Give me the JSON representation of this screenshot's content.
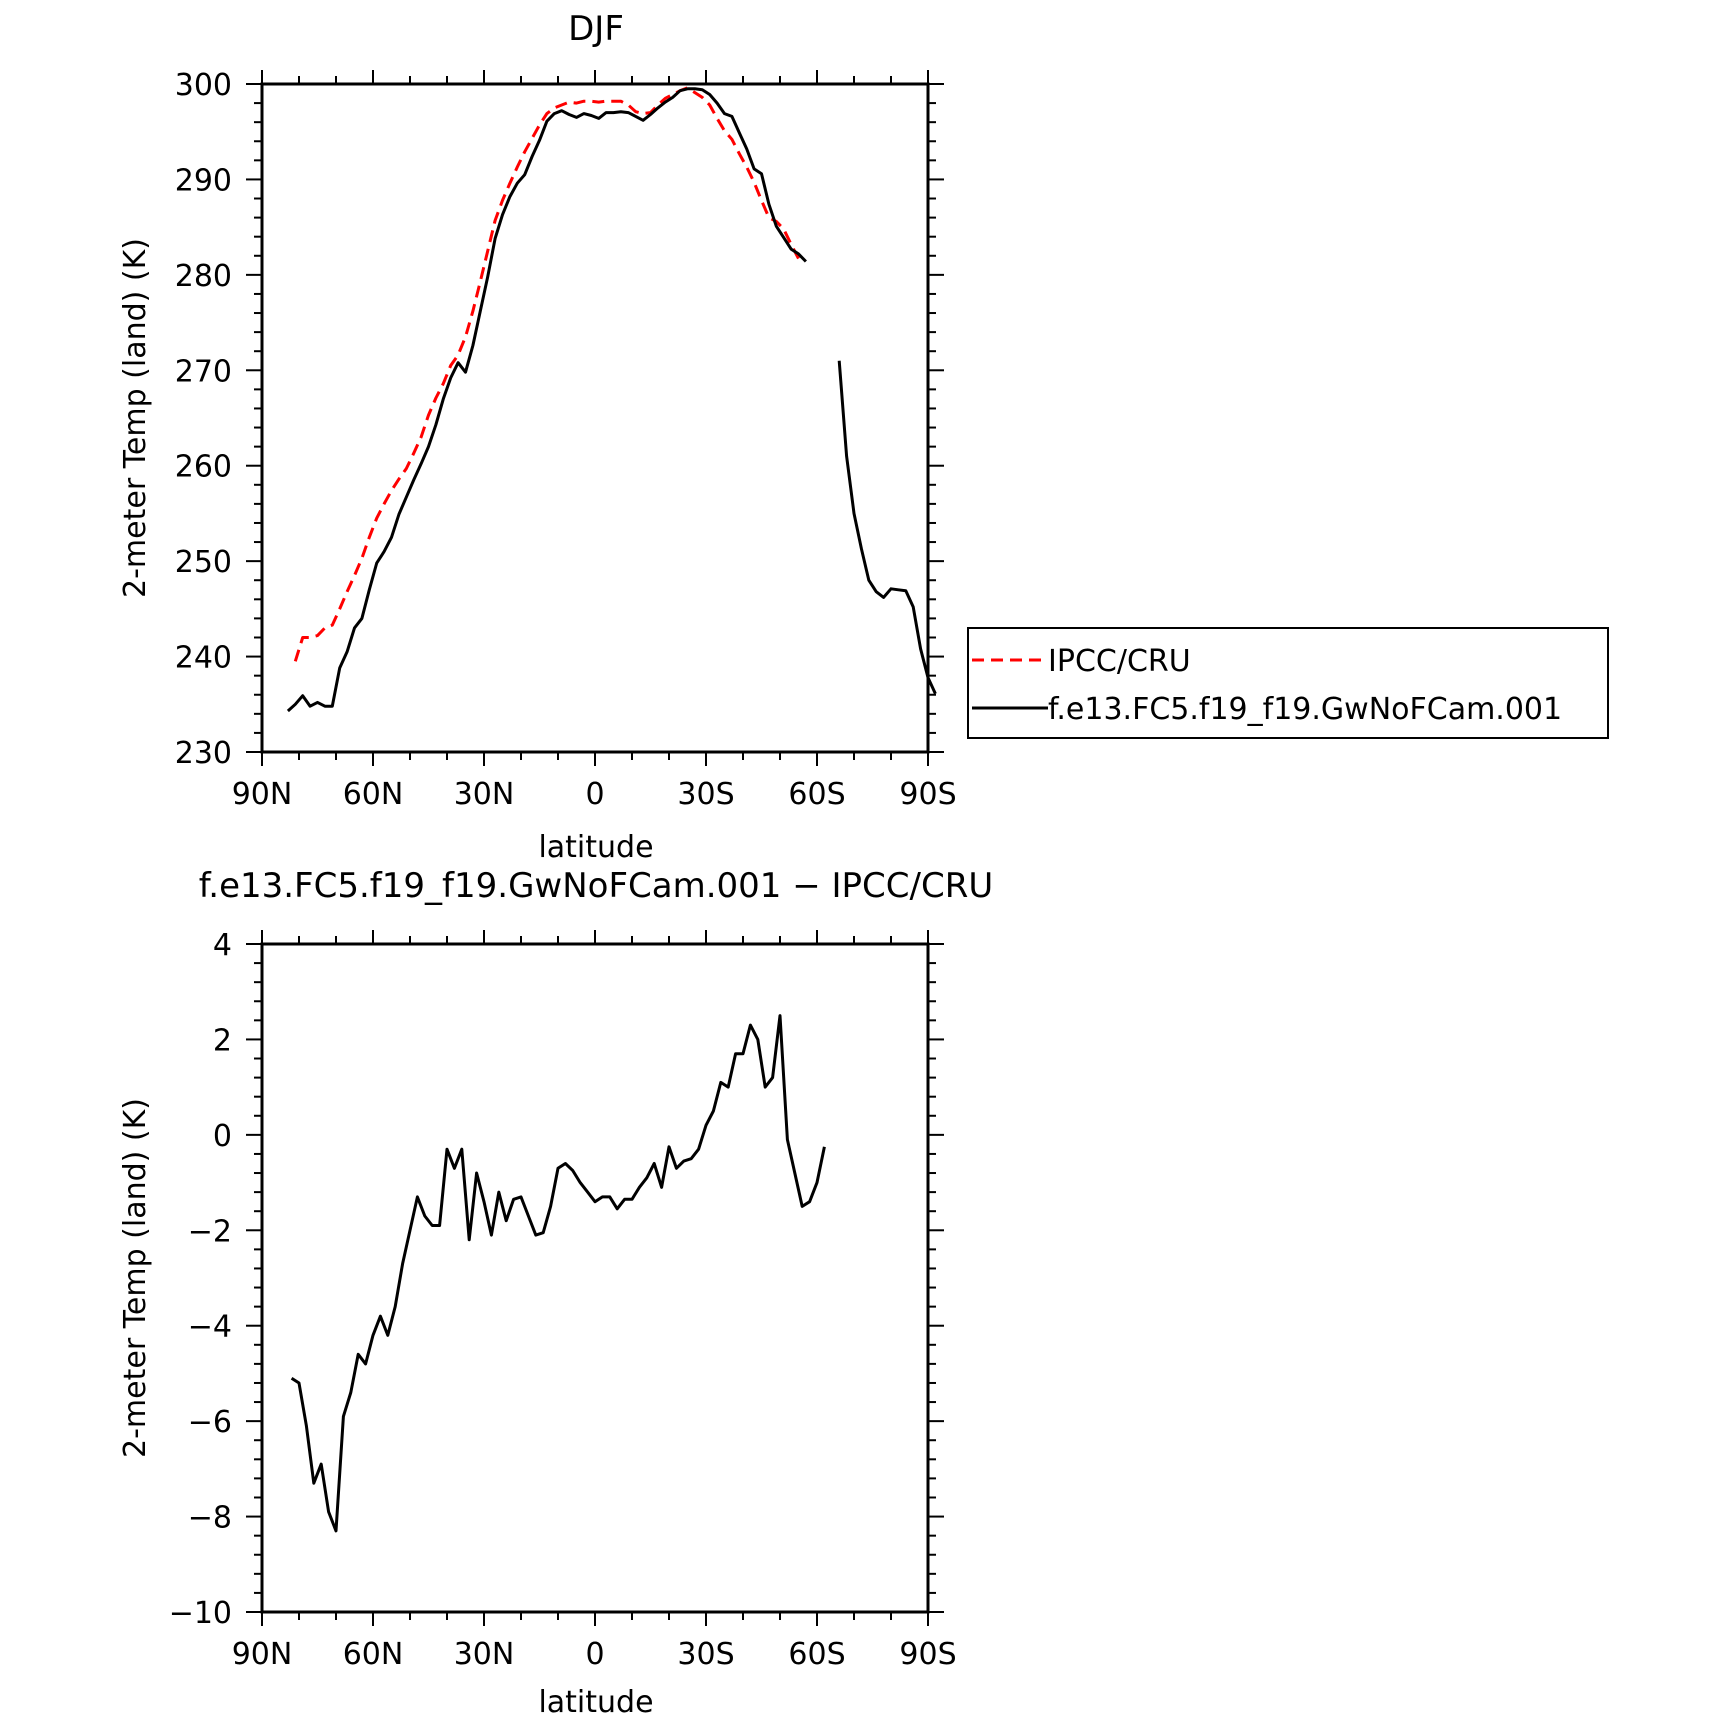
{
  "chart_data": [
    {
      "type": "line",
      "title": "DJF",
      "xlabel": "latitude",
      "ylabel": "2-meter Temp (land) (K)",
      "xlim": [
        90,
        -90
      ],
      "ylim": [
        230,
        300
      ],
      "xtick_labels": [
        "90N",
        "60N",
        "30N",
        "0",
        "30S",
        "60S",
        "90S"
      ],
      "ytick_labels": [
        "300",
        "290",
        "280",
        "270",
        "260",
        "250",
        "240",
        "230"
      ],
      "legend": {
        "placement": "right"
      },
      "series": [
        {
          "name": "IPCC/CRU",
          "color": "#ff0000",
          "style": "dashed",
          "points": [
            [
              81,
              239.5
            ],
            [
              79,
              242.0
            ],
            [
              77,
              242.0
            ],
            [
              75,
              242.2
            ],
            [
              73,
              243.0
            ],
            [
              71,
              243.3
            ],
            [
              69,
              245.0
            ],
            [
              67,
              246.8
            ],
            [
              65,
              248.5
            ],
            [
              63,
              250.3
            ],
            [
              61,
              252.5
            ],
            [
              59,
              254.5
            ],
            [
              57,
              256.0
            ],
            [
              55,
              257.4
            ],
            [
              53,
              258.6
            ],
            [
              51,
              259.7
            ],
            [
              49,
              261.3
            ],
            [
              47,
              263.0
            ],
            [
              45,
              265.3
            ],
            [
              43,
              267.1
            ],
            [
              41,
              268.6
            ],
            [
              39,
              270.5
            ],
            [
              37,
              271.6
            ],
            [
              35,
              273.5
            ],
            [
              33,
              276.2
            ],
            [
              31,
              279.3
            ],
            [
              29,
              282.5
            ],
            [
              27,
              285.7
            ],
            [
              25,
              287.8
            ],
            [
              23,
              289.6
            ],
            [
              21,
              291.3
            ],
            [
              19,
              292.9
            ],
            [
              17,
              294.3
            ],
            [
              15,
              295.7
            ],
            [
              13,
              296.9
            ],
            [
              11,
              297.5
            ],
            [
              9,
              297.8
            ],
            [
              7,
              298.1
            ],
            [
              5,
              298.0
            ],
            [
              3,
              298.2
            ],
            [
              1,
              298.2
            ],
            [
              -1,
              298.1
            ],
            [
              -3,
              298.2
            ],
            [
              -5,
              298.2
            ],
            [
              -7,
              298.2
            ],
            [
              -9,
              297.8
            ],
            [
              -11,
              297.1
            ],
            [
              -13,
              296.9
            ],
            [
              -15,
              297.0
            ],
            [
              -17,
              297.8
            ],
            [
              -19,
              298.5
            ],
            [
              -21,
              298.9
            ],
            [
              -23,
              299.3
            ],
            [
              -25,
              299.6
            ],
            [
              -27,
              299.1
            ],
            [
              -29,
              298.6
            ],
            [
              -31,
              297.8
            ],
            [
              -33,
              296.4
            ],
            [
              -35,
              295.1
            ],
            [
              -37,
              294.2
            ],
            [
              -39,
              292.7
            ],
            [
              -41,
              291.3
            ],
            [
              -43,
              289.7
            ],
            [
              -45,
              287.8
            ],
            [
              -47,
              286.0
            ],
            [
              -49,
              285.6
            ],
            [
              -51,
              284.8
            ],
            [
              -53,
              283.2
            ],
            [
              -55,
              281.7
            ]
          ]
        },
        {
          "name": "f.e13.FC5.f19_f19.GwNoFCam.001",
          "color": "#000000",
          "style": "solid",
          "points": [
            [
              83,
              234.3
            ],
            [
              81,
              235.0
            ],
            [
              79,
              235.9
            ],
            [
              77,
              234.8
            ],
            [
              75,
              235.2
            ],
            [
              73,
              234.8
            ],
            [
              71,
              234.8
            ],
            [
              69,
              238.8
            ],
            [
              67,
              240.5
            ],
            [
              65,
              243.0
            ],
            [
              63,
              244.0
            ],
            [
              61,
              247.0
            ],
            [
              59,
              249.8
            ],
            [
              57,
              251.0
            ],
            [
              55,
              252.5
            ],
            [
              53,
              254.9
            ],
            [
              51,
              256.7
            ],
            [
              49,
              258.5
            ],
            [
              47,
              260.2
            ],
            [
              45,
              262.0
            ],
            [
              43,
              264.3
            ],
            [
              41,
              267.0
            ],
            [
              39,
              269.2
            ],
            [
              37,
              270.8
            ],
            [
              35,
              269.8
            ],
            [
              33,
              272.6
            ],
            [
              31,
              276.2
            ],
            [
              29,
              279.8
            ],
            [
              27,
              283.8
            ],
            [
              25,
              286.3
            ],
            [
              23,
              288.2
            ],
            [
              21,
              289.6
            ],
            [
              19,
              290.5
            ],
            [
              17,
              292.4
            ],
            [
              15,
              294.1
            ],
            [
              13,
              296.1
            ],
            [
              11,
              296.9
            ],
            [
              9,
              297.2
            ],
            [
              7,
              296.8
            ],
            [
              5,
              296.5
            ],
            [
              3,
              296.9
            ],
            [
              1,
              296.7
            ],
            [
              -1,
              296.4
            ],
            [
              -3,
              297.0
            ],
            [
              -5,
              297.0
            ],
            [
              -7,
              297.1
            ],
            [
              -9,
              297.0
            ],
            [
              -11,
              296.6
            ],
            [
              -13,
              296.2
            ],
            [
              -15,
              296.8
            ],
            [
              -17,
              297.5
            ],
            [
              -19,
              298.1
            ],
            [
              -21,
              298.6
            ],
            [
              -23,
              299.3
            ],
            [
              -25,
              299.5
            ],
            [
              -27,
              299.5
            ],
            [
              -29,
              299.4
            ],
            [
              -31,
              298.9
            ],
            [
              -33,
              298.0
            ],
            [
              -35,
              296.9
            ],
            [
              -37,
              296.6
            ],
            [
              -39,
              294.9
            ],
            [
              -41,
              293.2
            ],
            [
              -43,
              291.1
            ],
            [
              -45,
              290.6
            ],
            [
              -47,
              287.4
            ],
            [
              -49,
              285.1
            ],
            [
              -51,
              283.9
            ],
            [
              -53,
              282.7
            ],
            [
              -55,
              282.2
            ],
            [
              -57,
              281.4
            ],
            [
              null,
              null
            ],
            [
              -66,
              271.0
            ],
            [
              -68,
              261.0
            ],
            [
              -70,
              255.0
            ],
            [
              -72,
              251.3
            ],
            [
              -74,
              248.0
            ],
            [
              -76,
              246.8
            ],
            [
              -78,
              246.2
            ],
            [
              -80,
              247.1
            ],
            [
              -82,
              247.0
            ],
            [
              -84,
              246.9
            ],
            [
              -86,
              245.2
            ],
            [
              -88,
              240.8
            ],
            [
              -90,
              237.8
            ],
            [
              -92,
              236.1
            ]
          ]
        }
      ]
    },
    {
      "type": "line",
      "title": "f.e13.FC5.f19_f19.GwNoFCam.001 − IPCC/CRU",
      "xlabel": "latitude",
      "ylabel": "2-meter Temp (land) (K)",
      "xlim": [
        90,
        -90
      ],
      "ylim": [
        -10,
        4
      ],
      "xtick_labels": [
        "90N",
        "60N",
        "30N",
        "0",
        "30S",
        "60S",
        "90S"
      ],
      "ytick_labels": [
        "4",
        "2",
        "0",
        "−2",
        "−4",
        "−6",
        "−8",
        "−10"
      ],
      "series": [
        {
          "color": "#000000",
          "style": "solid",
          "points": [
            [
              82,
              -5.1
            ],
            [
              80,
              -5.2
            ],
            [
              78,
              -6.1
            ],
            [
              76,
              -7.3
            ],
            [
              74,
              -6.9
            ],
            [
              72,
              -7.9
            ],
            [
              70,
              -8.3
            ],
            [
              68,
              -5.9
            ],
            [
              66,
              -5.4
            ],
            [
              64,
              -4.6
            ],
            [
              62,
              -4.8
            ],
            [
              60,
              -4.2
            ],
            [
              58,
              -3.8
            ],
            [
              56,
              -4.2
            ],
            [
              54,
              -3.6
            ],
            [
              52,
              -2.7
            ],
            [
              50,
              -2.0
            ],
            [
              48,
              -1.3
            ],
            [
              46,
              -1.7
            ],
            [
              44,
              -1.9
            ],
            [
              42,
              -1.9
            ],
            [
              40,
              -0.3
            ],
            [
              38,
              -0.7
            ],
            [
              36,
              -0.3
            ],
            [
              34,
              -2.2
            ],
            [
              32,
              -0.8
            ],
            [
              30,
              -1.4
            ],
            [
              28,
              -2.1
            ],
            [
              26,
              -1.2
            ],
            [
              24,
              -1.8
            ],
            [
              22,
              -1.35
            ],
            [
              20,
              -1.3
            ],
            [
              18,
              -1.7
            ],
            [
              16,
              -2.1
            ],
            [
              14,
              -2.05
            ],
            [
              12,
              -1.5
            ],
            [
              10,
              -0.7
            ],
            [
              8,
              -0.6
            ],
            [
              6,
              -0.75
            ],
            [
              4,
              -1.0
            ],
            [
              2,
              -1.2
            ],
            [
              0,
              -1.4
            ],
            [
              -2,
              -1.3
            ],
            [
              -4,
              -1.3
            ],
            [
              -6,
              -1.55
            ],
            [
              -8,
              -1.35
            ],
            [
              -10,
              -1.35
            ],
            [
              -12,
              -1.1
            ],
            [
              -14,
              -0.9
            ],
            [
              -16,
              -0.6
            ],
            [
              -18,
              -1.1
            ],
            [
              -20,
              -0.25
            ],
            [
              -22,
              -0.7
            ],
            [
              -24,
              -0.55
            ],
            [
              -26,
              -0.5
            ],
            [
              -28,
              -0.3
            ],
            [
              -30,
              0.2
            ],
            [
              -32,
              0.5
            ],
            [
              -34,
              1.1
            ],
            [
              -36,
              1.0
            ],
            [
              -38,
              1.7
            ],
            [
              -40,
              1.7
            ],
            [
              -42,
              2.3
            ],
            [
              -44,
              2.0
            ],
            [
              -46,
              1.0
            ],
            [
              -48,
              1.2
            ],
            [
              -50,
              2.5
            ],
            [
              -52,
              -0.1
            ],
            [
              -54,
              -0.8
            ],
            [
              -56,
              -1.5
            ],
            [
              -58,
              -1.4
            ],
            [
              -60,
              -1.0
            ],
            [
              -62,
              -0.25
            ]
          ]
        }
      ]
    }
  ]
}
